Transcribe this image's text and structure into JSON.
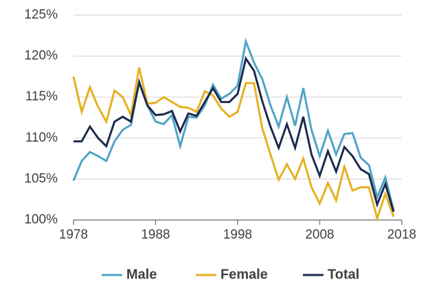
{
  "chart_data": {
    "type": "line",
    "x": [
      1978,
      1979,
      1980,
      1981,
      1982,
      1983,
      1984,
      1985,
      1986,
      1987,
      1988,
      1989,
      1990,
      1991,
      1992,
      1993,
      1994,
      1995,
      1996,
      1997,
      1998,
      1999,
      2000,
      2001,
      2002,
      2003,
      2004,
      2005,
      2006,
      2007,
      2008,
      2009,
      2010,
      2011,
      2012,
      2013,
      2014,
      2015,
      2016,
      2017
    ],
    "series": [
      {
        "name": "Male",
        "color": "#4fa3c7",
        "values": [
          104.8,
          107.2,
          108.3,
          107.8,
          107.2,
          109.6,
          111.0,
          111.6,
          116.9,
          114.0,
          112.0,
          111.7,
          112.8,
          109.0,
          112.6,
          112.5,
          114.0,
          116.5,
          114.8,
          115.4,
          116.4,
          121.8,
          119.2,
          117.2,
          114.0,
          111.4,
          115.0,
          111.5,
          116.1,
          111.0,
          107.8,
          110.9,
          108.0,
          110.5,
          110.6,
          107.6,
          106.7,
          102.8,
          105.2,
          101.2
        ]
      },
      {
        "name": "Female",
        "color": "#e5b021",
        "values": [
          117.5,
          113.2,
          116.2,
          113.8,
          112.0,
          115.8,
          115.0,
          112.8,
          118.6,
          114.2,
          114.3,
          115.0,
          114.4,
          113.8,
          113.7,
          113.2,
          115.7,
          115.2,
          113.6,
          112.6,
          113.2,
          116.7,
          116.7,
          111.2,
          108.0,
          104.9,
          106.8,
          105.0,
          107.5,
          104.0,
          102.0,
          104.5,
          102.4,
          106.5,
          103.6,
          104.0,
          104.0,
          100.2,
          103.2,
          100.4
        ]
      },
      {
        "name": "Total",
        "color": "#1b2a4e",
        "values": [
          109.6,
          109.6,
          111.4,
          110.0,
          109.0,
          112.0,
          112.6,
          112.0,
          116.8,
          114.0,
          112.8,
          112.9,
          113.3,
          110.8,
          113.0,
          112.7,
          114.4,
          116.1,
          114.4,
          114.4,
          115.4,
          119.7,
          118.2,
          114.5,
          111.4,
          108.8,
          111.7,
          108.8,
          112.6,
          108.0,
          105.4,
          108.4,
          105.9,
          108.9,
          107.8,
          106.2,
          105.6,
          101.9,
          104.4,
          101.0
        ]
      }
    ],
    "xlim": [
      1978,
      2018
    ],
    "xticks": [
      1978,
      1988,
      1998,
      2008,
      2018
    ],
    "ylim": [
      100,
      125
    ],
    "yticks": [
      {
        "value": 100,
        "label": "100%"
      },
      {
        "value": 105,
        "label": "105%"
      },
      {
        "value": 110,
        "label": "110%"
      },
      {
        "value": 115,
        "label": "115%"
      },
      {
        "value": 120,
        "label": "120%"
      },
      {
        "value": 125,
        "label": "125%"
      }
    ],
    "grid": true,
    "legend": "bottom"
  }
}
